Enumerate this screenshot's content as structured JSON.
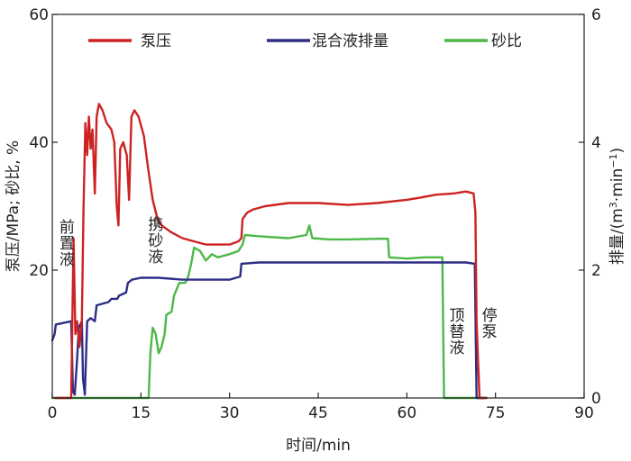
{
  "chart_data": {
    "type": "line",
    "xlabel": "时间/min",
    "ylabel_left": "泵压/MPa; 砂比, %",
    "ylabel_right_main": "排量/(m",
    "ylabel_right_sup3": "3",
    "ylabel_right_mid": "·min",
    "ylabel_right_supm1": "−1",
    "ylabel_right_end": ")",
    "xlim": [
      0,
      90
    ],
    "ylim_left": [
      0,
      60
    ],
    "ylim_right": [
      0,
      6
    ],
    "x_ticks": [
      "0",
      "15",
      "30",
      "45",
      "60",
      "75",
      "90"
    ],
    "y_left_ticks": [
      "20",
      "40",
      "60"
    ],
    "y_right_ticks": [
      "0",
      "2",
      "4",
      "6"
    ],
    "legend_position": "top",
    "series": [
      {
        "name": "泵压",
        "axis": "left",
        "color": "#cc2222",
        "points": [
          [
            0.5,
            0
          ],
          [
            3.2,
            0
          ],
          [
            3.6,
            25
          ],
          [
            3.9,
            10
          ],
          [
            4.2,
            12
          ],
          [
            4.6,
            8
          ],
          [
            5.0,
            12
          ],
          [
            5.3,
            30
          ],
          [
            5.6,
            43
          ],
          [
            5.9,
            38
          ],
          [
            6.2,
            44
          ],
          [
            6.5,
            39
          ],
          [
            6.8,
            42
          ],
          [
            7.2,
            32
          ],
          [
            7.5,
            44
          ],
          [
            7.9,
            46
          ],
          [
            8.5,
            45
          ],
          [
            9.2,
            43
          ],
          [
            10.0,
            42
          ],
          [
            10.5,
            40
          ],
          [
            10.9,
            30
          ],
          [
            11.2,
            27
          ],
          [
            11.5,
            39
          ],
          [
            12.0,
            40
          ],
          [
            12.6,
            38
          ],
          [
            13.0,
            31
          ],
          [
            13.4,
            44
          ],
          [
            13.9,
            45
          ],
          [
            14.6,
            44
          ],
          [
            15.5,
            41
          ],
          [
            16.2,
            36
          ],
          [
            17.0,
            31
          ],
          [
            17.8,
            28
          ],
          [
            18.5,
            27
          ],
          [
            20,
            26
          ],
          [
            22,
            25
          ],
          [
            24,
            24.5
          ],
          [
            26,
            24
          ],
          [
            28,
            24
          ],
          [
            30,
            24
          ],
          [
            31.5,
            24.5
          ],
          [
            32,
            25
          ],
          [
            32.2,
            28
          ],
          [
            33,
            29
          ],
          [
            34,
            29.5
          ],
          [
            36,
            30
          ],
          [
            40,
            30.5
          ],
          [
            45,
            30.5
          ],
          [
            50,
            30.2
          ],
          [
            55,
            30.5
          ],
          [
            58,
            30.8
          ],
          [
            60,
            31
          ],
          [
            62,
            31.3
          ],
          [
            65,
            31.8
          ],
          [
            68,
            32
          ],
          [
            70,
            32.3
          ],
          [
            71.3,
            32
          ],
          [
            71.6,
            29
          ],
          [
            71.8,
            12
          ],
          [
            72.0,
            7
          ],
          [
            72.3,
            0
          ],
          [
            73.5,
            0
          ]
        ]
      },
      {
        "name": "混合液排量",
        "axis": "right",
        "color": "#2d2d86",
        "points": [
          [
            0,
            0.9
          ],
          [
            0.4,
            1.0
          ],
          [
            0.6,
            1.15
          ],
          [
            3.2,
            1.2
          ],
          [
            3.5,
            0.1
          ],
          [
            3.8,
            0.05
          ],
          [
            4.2,
            0.6
          ],
          [
            4.5,
            1.1
          ],
          [
            5.0,
            1.2
          ],
          [
            5.2,
            0.3
          ],
          [
            5.5,
            0.05
          ],
          [
            5.9,
            1.2
          ],
          [
            6.5,
            1.25
          ],
          [
            7.2,
            1.2
          ],
          [
            7.5,
            1.45
          ],
          [
            9.5,
            1.5
          ],
          [
            10.0,
            1.55
          ],
          [
            11.0,
            1.55
          ],
          [
            11.3,
            1.6
          ],
          [
            12.5,
            1.65
          ],
          [
            12.8,
            1.8
          ],
          [
            13.5,
            1.85
          ],
          [
            15.0,
            1.88
          ],
          [
            18,
            1.88
          ],
          [
            22,
            1.85
          ],
          [
            26,
            1.85
          ],
          [
            30,
            1.85
          ],
          [
            31.8,
            1.9
          ],
          [
            32,
            2.1
          ],
          [
            35,
            2.12
          ],
          [
            40,
            2.12
          ],
          [
            45,
            2.12
          ],
          [
            50,
            2.12
          ],
          [
            55,
            2.12
          ],
          [
            60,
            2.12
          ],
          [
            65,
            2.12
          ],
          [
            70,
            2.12
          ],
          [
            71.5,
            2.1
          ],
          [
            71.8,
            0
          ],
          [
            73,
            0
          ]
        ]
      },
      {
        "name": "砂比",
        "axis": "left",
        "color": "#4db848",
        "points": [
          [
            0,
            0
          ],
          [
            16.3,
            0
          ],
          [
            16.6,
            7
          ],
          [
            17,
            11
          ],
          [
            17.5,
            10
          ],
          [
            18.0,
            7
          ],
          [
            18.5,
            8
          ],
          [
            19,
            10
          ],
          [
            19.3,
            13
          ],
          [
            20.2,
            13.5
          ],
          [
            20.6,
            16
          ],
          [
            21.5,
            18
          ],
          [
            22.5,
            18
          ],
          [
            23,
            19
          ],
          [
            23.5,
            21
          ],
          [
            24,
            23.5
          ],
          [
            25,
            23
          ],
          [
            26,
            21.5
          ],
          [
            27,
            22.5
          ],
          [
            28,
            22
          ],
          [
            30,
            22.5
          ],
          [
            31.5,
            23
          ],
          [
            32.2,
            24
          ],
          [
            32.6,
            25.5
          ],
          [
            35,
            25.3
          ],
          [
            40,
            25
          ],
          [
            43,
            25.5
          ],
          [
            43.5,
            27
          ],
          [
            44,
            25
          ],
          [
            47,
            24.8
          ],
          [
            50,
            24.8
          ],
          [
            55,
            24.9
          ],
          [
            56.8,
            24.9
          ],
          [
            57,
            22
          ],
          [
            60,
            21.8
          ],
          [
            63,
            22
          ],
          [
            66,
            22
          ],
          [
            66.3,
            0
          ],
          [
            73.5,
            0
          ]
        ]
      }
    ],
    "annotations": [
      {
        "text": "前置液",
        "x": 2.5
      },
      {
        "text": "携砂液",
        "x": 17.5
      },
      {
        "text": "顶替液",
        "x": 68.5
      },
      {
        "text": "停泵",
        "x": 74
      }
    ]
  }
}
